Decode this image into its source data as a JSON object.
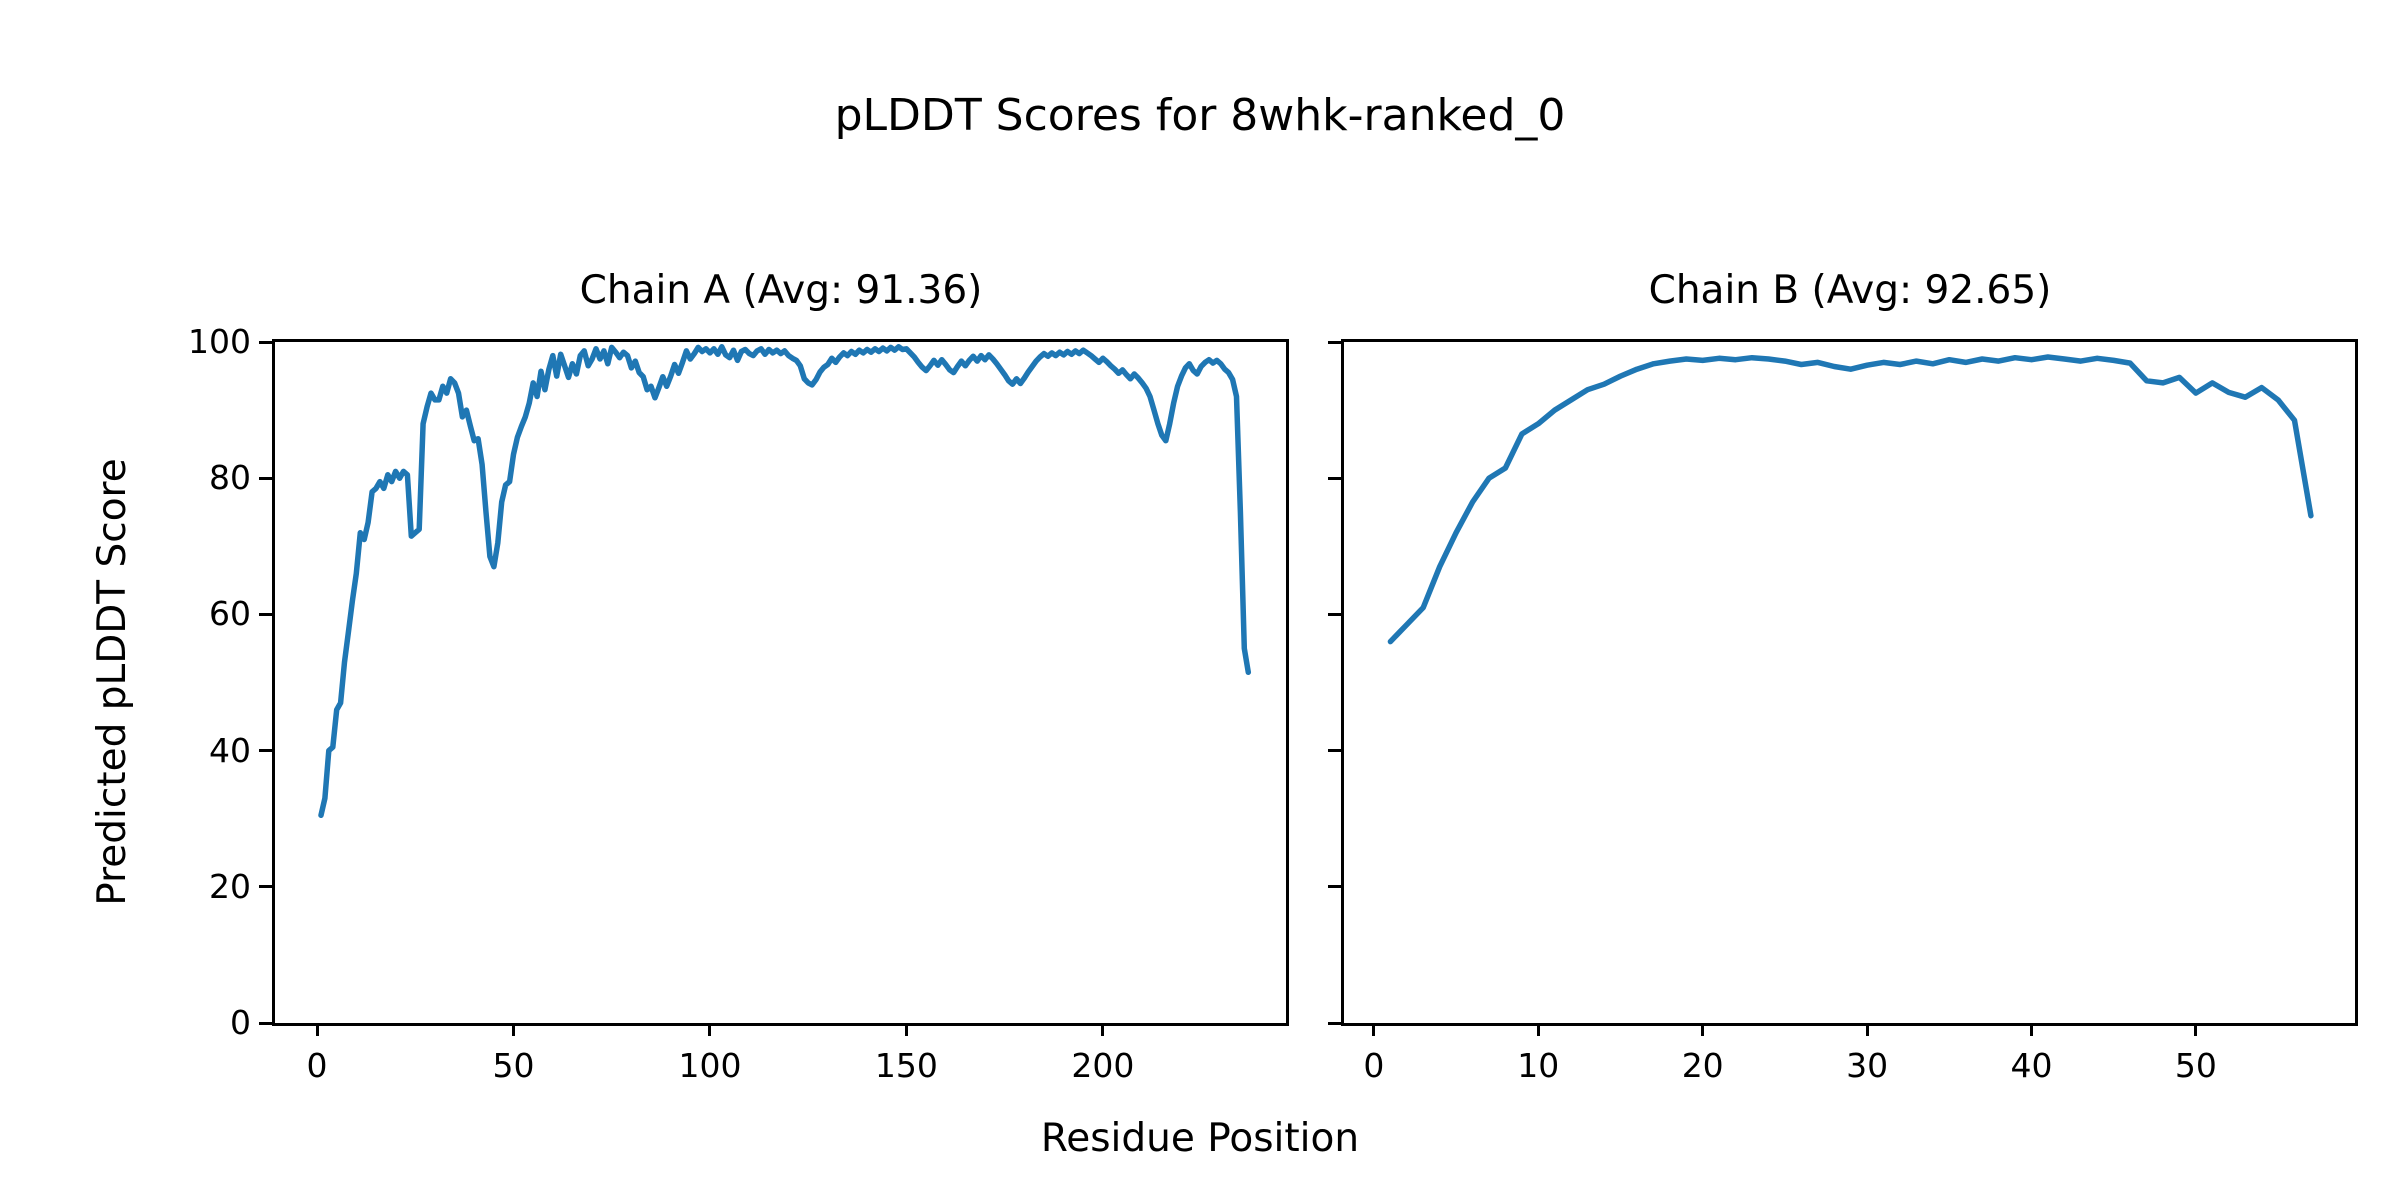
{
  "figure_title": "pLDDT Scores for 8whk-ranked_0",
  "shared_xlabel": "Residue Position",
  "shared_ylabel": "Predicted pLDDT Score",
  "line_color": "#1f77b4",
  "axis_color": "#000000",
  "chart_data": [
    {
      "type": "line",
      "title": "Chain A (Avg: 91.36)",
      "chain": "A",
      "average_plddt": 91.36,
      "xlabel": "Residue Position",
      "ylabel": "Predicted pLDDT Score",
      "xlim": [
        -10.7,
        246.6
      ],
      "ylim": [
        0,
        100
      ],
      "xticks": [
        0,
        50,
        100,
        150,
        200
      ],
      "yticks": [
        0,
        20,
        40,
        60,
        80,
        100
      ],
      "show_ytick_labels": true,
      "grid": false,
      "legend": "none",
      "series": [
        {
          "name": "pLDDT",
          "x_start": 1,
          "x_step": 1,
          "values": [
            30.5,
            33,
            40,
            40.5,
            46,
            47,
            53,
            57.5,
            62,
            66,
            72,
            71,
            73.5,
            78,
            78.5,
            79.5,
            78.5,
            80.5,
            79.5,
            81,
            80,
            81,
            80.5,
            71.5,
            72,
            72.5,
            88,
            90.5,
            92.5,
            91.5,
            91.5,
            93.5,
            92.5,
            94.6,
            94,
            92.5,
            89,
            90,
            87.7,
            85.5,
            85.8,
            82,
            75,
            68.5,
            67,
            70.5,
            76.5,
            79,
            79.5,
            83.5,
            86,
            87.6,
            89,
            91,
            94,
            92,
            95.7,
            93,
            96,
            98,
            95,
            98.2,
            96.5,
            94.8,
            96.8,
            95.3,
            98,
            98.7,
            96.5,
            97.5,
            99,
            97.5,
            98.7,
            96.8,
            99.2,
            98.5,
            97.7,
            98.5,
            98,
            96.2,
            97.2,
            95.5,
            94.9,
            93,
            93.5,
            91.8,
            93.3,
            94.9,
            93.5,
            95,
            96.7,
            95.4,
            97,
            98.7,
            97.5,
            98.3,
            99.2,
            98.6,
            99,
            98.4,
            99,
            98.2,
            99.3,
            98.1,
            97.7,
            98.8,
            97.3,
            98.6,
            98.9,
            98.3,
            98,
            98.7,
            99,
            98.2,
            98.9,
            98.4,
            98.8,
            98.3,
            98.7,
            98,
            97.6,
            97.3,
            96.5,
            94.6,
            94,
            93.7,
            94.5,
            95.6,
            96.3,
            96.7,
            97.6,
            97,
            97.8,
            98.4,
            98,
            98.6,
            98.2,
            98.8,
            98.4,
            98.9,
            98.5,
            99,
            98.6,
            99.1,
            98.7,
            99.2,
            98.8,
            99.3,
            98.9,
            99,
            98.4,
            97.8,
            97,
            96.3,
            95.8,
            96.5,
            97.3,
            96.6,
            97.4,
            96.7,
            95.9,
            95.5,
            96.4,
            97.2,
            96.5,
            97.3,
            97.9,
            97.2,
            98,
            97.4,
            98.1,
            97.5,
            96.8,
            96,
            95.2,
            94.3,
            93.8,
            94.6,
            93.9,
            94.7,
            95.6,
            96.4,
            97.2,
            97.8,
            98.3,
            97.9,
            98.4,
            98,
            98.5,
            98.1,
            98.6,
            98.2,
            98.7,
            98.3,
            98.8,
            98.4,
            98,
            97.5,
            97,
            97.6,
            97.1,
            96.5,
            96,
            95.4,
            95.9,
            95.2,
            94.6,
            95.3,
            94.7,
            94,
            93.2,
            92,
            90,
            88,
            86.3,
            85.5,
            88,
            91,
            93.5,
            95,
            96.2,
            96.8,
            95.8,
            95.3,
            96.4,
            97,
            97.4,
            96.9,
            97.3,
            96.8,
            96,
            95.5,
            94.5,
            92,
            75,
            55,
            51.5
          ]
        }
      ]
    },
    {
      "type": "line",
      "title": "Chain B (Avg: 92.65)",
      "chain": "B",
      "average_plddt": 92.65,
      "xlabel": "Residue Position",
      "ylabel": "Predicted pLDDT Score",
      "xlim": [
        -1.82,
        59.68
      ],
      "ylim": [
        0,
        100
      ],
      "xticks": [
        0,
        10,
        20,
        30,
        40,
        50
      ],
      "yticks": [
        0,
        20,
        40,
        60,
        80,
        100
      ],
      "show_ytick_labels": false,
      "grid": false,
      "legend": "none",
      "series": [
        {
          "name": "pLDDT",
          "x_start": 1,
          "x_step": 1,
          "values": [
            56,
            58.5,
            61,
            67,
            72,
            76.5,
            80,
            81.5,
            86.5,
            88,
            90,
            91.5,
            93,
            93.8,
            95,
            96,
            96.8,
            97.2,
            97.5,
            97.3,
            97.6,
            97.4,
            97.7,
            97.5,
            97.2,
            96.7,
            97,
            96.4,
            96,
            96.6,
            97,
            96.7,
            97.2,
            96.8,
            97.4,
            97,
            97.5,
            97.2,
            97.7,
            97.4,
            97.8,
            97.5,
            97.2,
            97.6,
            97.3,
            96.9,
            94.3,
            94,
            94.8,
            92.5,
            94,
            92.6,
            91.9,
            93.3,
            91.5,
            88.5,
            74.5
          ]
        }
      ]
    }
  ]
}
